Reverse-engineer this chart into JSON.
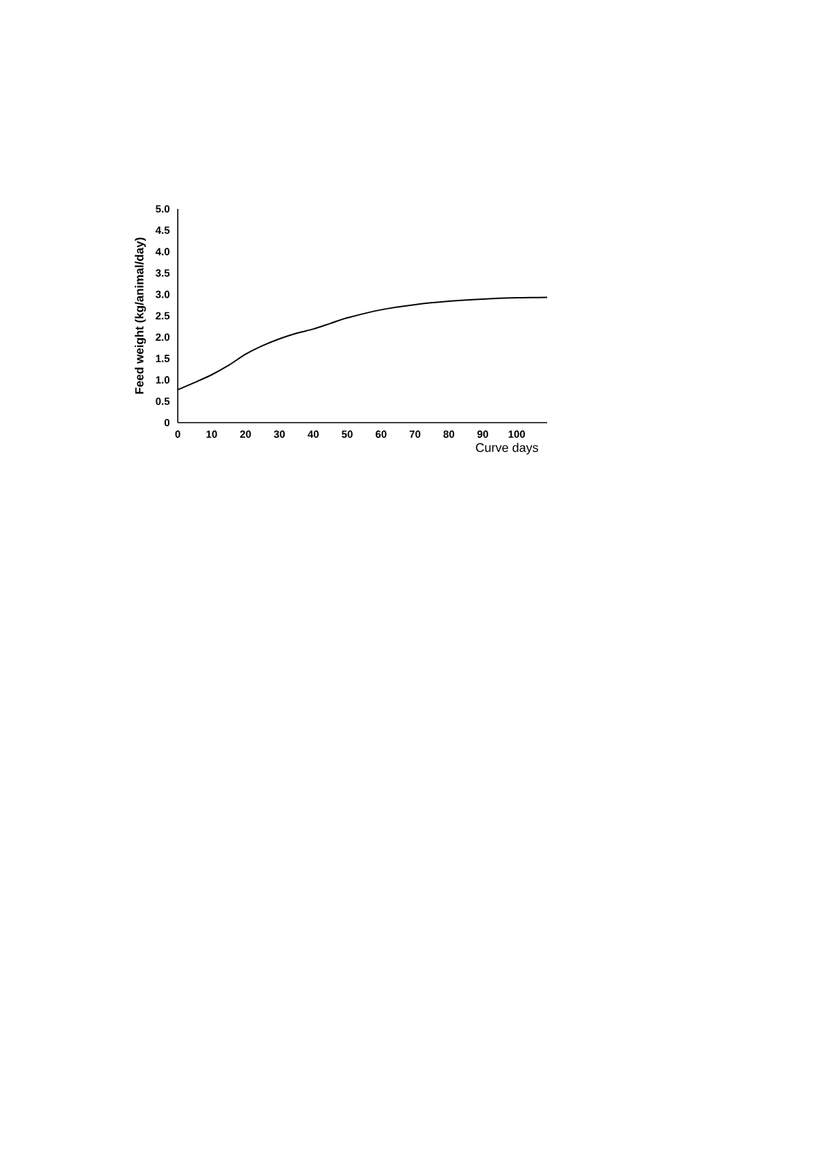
{
  "chart_data": {
    "type": "line",
    "xlabel": "Curve days",
    "ylabel": "Feed weight (kg/animal/day)",
    "x": [
      0,
      5,
      10,
      15,
      20,
      25,
      30,
      35,
      40,
      45,
      50,
      60,
      70,
      80,
      90,
      100,
      109
    ],
    "series": [
      {
        "color": "#000000",
        "values": [
          0.77,
          0.94,
          1.12,
          1.34,
          1.6,
          1.8,
          1.96,
          2.09,
          2.19,
          2.32,
          2.45,
          2.64,
          2.76,
          2.84,
          2.89,
          2.92,
          2.93
        ]
      }
    ],
    "xlim": [
      0,
      109
    ],
    "ylim": [
      0,
      5
    ],
    "xticks": [
      0,
      10,
      20,
      30,
      40,
      50,
      60,
      70,
      80,
      90,
      100
    ],
    "yticks": [
      0,
      {
        "value": 0.5,
        "label": "0.5"
      },
      {
        "value": 1,
        "label": "1.0"
      },
      {
        "value": 1.5,
        "label": "1.5"
      },
      {
        "value": 2,
        "label": "2.0"
      },
      {
        "value": 2.5,
        "label": "2.5"
      },
      {
        "value": 3,
        "label": "3.0"
      },
      {
        "value": 3.5,
        "label": "3.5"
      },
      {
        "value": 4,
        "label": "4.0"
      },
      {
        "value": 4.5,
        "label": "4.5"
      },
      {
        "value": 5,
        "label": "5.0"
      }
    ],
    "grid": false,
    "legend": false,
    "marker": "none",
    "line_style": "solid"
  }
}
